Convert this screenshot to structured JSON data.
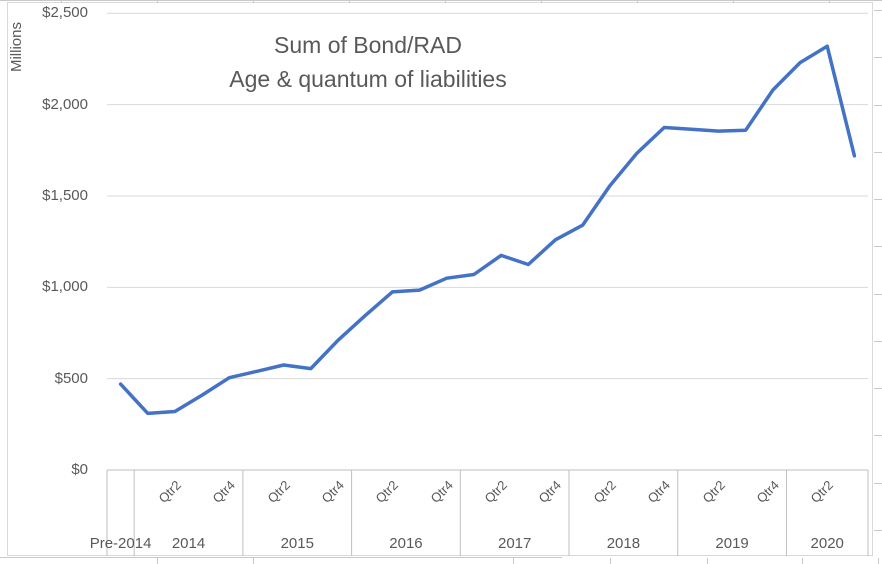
{
  "chart_data": {
    "type": "line",
    "title": "Sum of Bond/RAD",
    "subtitle": "Age & quantum of liabilities",
    "title_lines": [
      "Sum of Bond/RAD",
      "Age & quantum of liabilities"
    ],
    "units": "$ millions",
    "legend": "none",
    "grid": true,
    "y_axis": {
      "title": "Millions",
      "min": 0,
      "max": 2500,
      "tick_interval": 500,
      "tick_values": [
        0,
        500,
        1000,
        1500,
        2000,
        2500
      ],
      "tick_labels": [
        "$0",
        "$500",
        "$1,000",
        "$1,500",
        "$2,000",
        "$2,500"
      ]
    },
    "x_axis": {
      "year_groups": [
        {
          "label": "Pre-2014",
          "quarters": 1,
          "ticks": []
        },
        {
          "label": "2014",
          "quarters": 4,
          "ticks": [
            {
              "text": "Qtr2",
              "q": 1
            },
            {
              "text": "Qtr4",
              "q": 3
            }
          ]
        },
        {
          "label": "2015",
          "quarters": 4,
          "ticks": [
            {
              "text": "Qtr2",
              "q": 1
            },
            {
              "text": "Qtr4",
              "q": 3
            }
          ]
        },
        {
          "label": "2016",
          "quarters": 4,
          "ticks": [
            {
              "text": "Qtr2",
              "q": 1
            },
            {
              "text": "Qtr4",
              "q": 3
            }
          ]
        },
        {
          "label": "2017",
          "quarters": 4,
          "ticks": [
            {
              "text": "Qtr2",
              "q": 1
            },
            {
              "text": "Qtr4",
              "q": 3
            }
          ]
        },
        {
          "label": "2018",
          "quarters": 4,
          "ticks": [
            {
              "text": "Qtr2",
              "q": 1
            },
            {
              "text": "Qtr4",
              "q": 3
            }
          ]
        },
        {
          "label": "2019",
          "quarters": 4,
          "ticks": [
            {
              "text": "Qtr2",
              "q": 1
            },
            {
              "text": "Qtr4",
              "q": 3
            }
          ]
        },
        {
          "label": "2020",
          "quarters": 3,
          "ticks": [
            {
              "text": "Qtr2",
              "q": 1
            }
          ]
        }
      ]
    },
    "series": [
      {
        "name": "Sum of Bond/RAD",
        "categories": [
          "Pre-2014",
          "2014 Qtr1",
          "2014 Qtr2",
          "2014 Qtr3",
          "2014 Qtr4",
          "2015 Qtr1",
          "2015 Qtr2",
          "2015 Qtr3",
          "2015 Qtr4",
          "2016 Qtr1",
          "2016 Qtr2",
          "2016 Qtr3",
          "2016 Qtr4",
          "2017 Qtr1",
          "2017 Qtr2",
          "2017 Qtr3",
          "2017 Qtr4",
          "2018 Qtr1",
          "2018 Qtr2",
          "2018 Qtr3",
          "2018 Qtr4",
          "2019 Qtr1",
          "2019 Qtr2",
          "2019 Qtr3",
          "2019 Qtr4",
          "2020 Qtr1",
          "2020 Qtr2",
          "2020 Qtr3"
        ],
        "values": [
          470,
          310,
          320,
          410,
          505,
          540,
          575,
          555,
          710,
          845,
          975,
          985,
          1050,
          1070,
          1175,
          1125,
          1260,
          1340,
          1555,
          1735,
          1875,
          1865,
          1855,
          1860,
          2080,
          2230,
          2320,
          1720
        ]
      }
    ],
    "colors": {
      "line": "#4472C4",
      "text": "#595959",
      "gridline": "#D9D9D9",
      "axis": "#BFBFBF",
      "border": "#D9D9D9"
    }
  }
}
